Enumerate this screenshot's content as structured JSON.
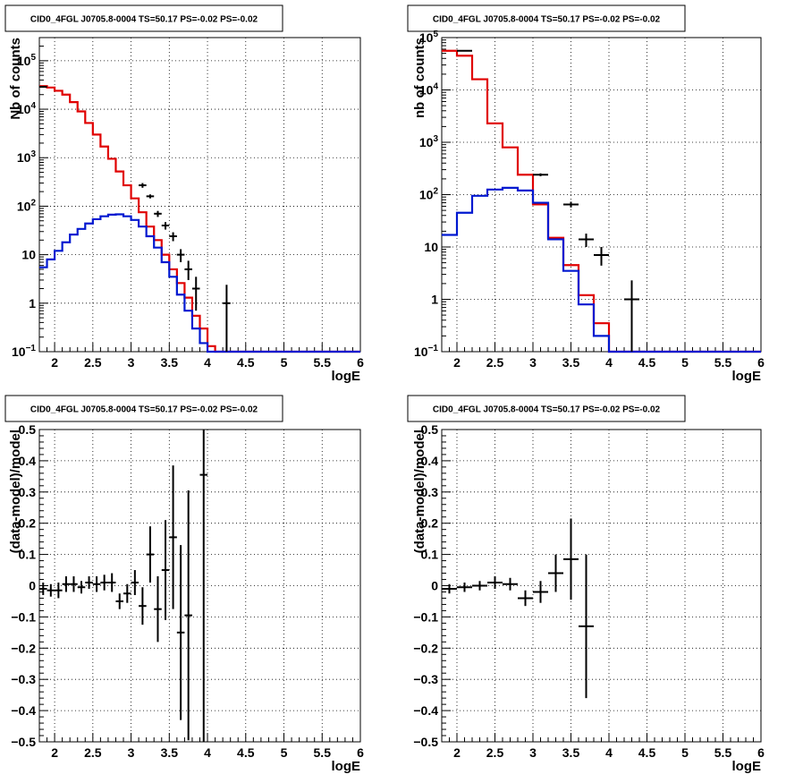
{
  "canvas": {
    "background": "#ffffff"
  },
  "colors": {
    "data": "#000000",
    "total_model": "#e00000",
    "source_model": "#0018d0",
    "grid": "#000000"
  },
  "panels": [
    {
      "title": "CID0_4FGL J0705.8-0004 TS=50.17 PS=-0.02 PS=-0.02",
      "ylabel": "Nb of counts",
      "xlabel": "logE"
    },
    {
      "title": "CID0_4FGL J0705.8-0004 TS=50.17 PS=-0.02 PS=-0.02",
      "ylabel": "nb of counts",
      "xlabel": "logE"
    },
    {
      "title": "CID0_4FGL J0705.8-0004 TS=50.17 PS=-0.02 PS=-0.02",
      "ylabel": "(data-model)/model",
      "xlabel": "logE"
    },
    {
      "title": "CID0_4FGL J0705.8-0004 TS=50.17 PS=-0.02 PS=-0.02",
      "ylabel": "(data-model)/model",
      "xlabel": "logE"
    }
  ],
  "chart_data": [
    {
      "type": "line",
      "title": "CID0_4FGL J0705.8-0004 TS=50.17 PS=-0.02 PS=-0.02",
      "xlabel": "logE",
      "ylabel": "Nb of counts",
      "xlim": [
        1.8,
        6.0
      ],
      "ylim": [
        0.1,
        300000
      ],
      "yscale": "log",
      "xticks": [
        "2",
        "2.5",
        "3",
        "3.5",
        "4",
        "4.5",
        "5",
        "5.5",
        "6"
      ],
      "yticks": [
        "10^-1",
        "1",
        "10",
        "10^2",
        "10^3",
        "10^4",
        "10^5"
      ],
      "grid": true,
      "bin_edges": [
        1.8,
        1.9,
        2.0,
        2.1,
        2.2,
        2.3,
        2.4,
        2.5,
        2.6,
        2.7,
        2.8,
        2.9,
        3.0,
        3.1,
        3.2,
        3.3,
        3.4,
        3.5,
        3.6,
        3.7,
        3.8,
        3.9,
        4.0,
        4.1,
        4.2,
        4.3,
        4.4,
        4.5,
        4.6,
        4.7,
        4.8,
        4.9,
        5.0,
        5.1,
        5.2,
        5.3,
        5.4,
        5.5,
        5.6,
        5.7,
        5.8,
        5.9,
        6.0
      ],
      "series": [
        {
          "name": "",
          "color": "#e00000",
          "values": [
            30000,
            28000,
            24000,
            20000,
            14000,
            9000,
            5200,
            3000,
            1700,
            950,
            520,
            270,
            145,
            75,
            38,
            20,
            10,
            5,
            2.6,
            1.3,
            0.55,
            0.3,
            0.13,
            0.1,
            0.1,
            0.1,
            0.1,
            0.1,
            0.1,
            0.1,
            0.1,
            0.1,
            0.1,
            0.1,
            0.1,
            0.1,
            0.1,
            0.1,
            0.1,
            0.1,
            0.1,
            0.1
          ]
        },
        {
          "name": "",
          "color": "#0018d0",
          "values": [
            5.5,
            8,
            12,
            18,
            26,
            34,
            44,
            54,
            62,
            67,
            68,
            62,
            52,
            38,
            24,
            14,
            7,
            3.5,
            1.5,
            0.7,
            0.3,
            0.15,
            0.1,
            0.1,
            0.1,
            0.1,
            0.1,
            0.1,
            0.1,
            0.1,
            0.1,
            0.1,
            0.1,
            0.1,
            0.1,
            0.1,
            0.1,
            0.1,
            0.1,
            0.1,
            0.1,
            0.1
          ]
        }
      ],
      "data_points": [
        {
          "x": 1.85,
          "y": 29000,
          "xerr": 0.05,
          "yerr": [
            800,
            800
          ]
        },
        {
          "x": 3.15,
          "y": 270,
          "xerr": 0.05,
          "yerr": [
            30,
            30
          ]
        },
        {
          "x": 3.25,
          "y": 160,
          "xerr": 0.05,
          "yerr": [
            15,
            15
          ]
        },
        {
          "x": 3.35,
          "y": 70,
          "xerr": 0.05,
          "yerr": [
            10,
            10
          ]
        },
        {
          "x": 3.45,
          "y": 40,
          "xerr": 0.05,
          "yerr": [
            7,
            7
          ]
        },
        {
          "x": 3.55,
          "y": 24,
          "xerr": 0.05,
          "yerr": [
            5,
            5
          ]
        },
        {
          "x": 3.65,
          "y": 10,
          "xerr": 0.05,
          "yerr": [
            3,
            3
          ]
        },
        {
          "x": 3.75,
          "y": 5,
          "xerr": 0.05,
          "yerr": [
            2,
            2.5
          ]
        },
        {
          "x": 3.85,
          "y": 2,
          "xerr": 0.05,
          "yerr": [
            1.3,
            1.5
          ]
        },
        {
          "x": 4.25,
          "y": 1,
          "xerr": 0.05,
          "yerr": [
            0.9,
            1.4
          ]
        }
      ]
    },
    {
      "type": "line",
      "title": "CID0_4FGL J0705.8-0004 TS=50.17 PS=-0.02 PS=-0.02",
      "xlabel": "logE",
      "ylabel": "nb of counts",
      "xlim": [
        1.8,
        6.0
      ],
      "ylim": [
        0.1,
        100000
      ],
      "yscale": "log",
      "xticks": [
        "2",
        "2.5",
        "3",
        "3.5",
        "4",
        "4.5",
        "5",
        "5.5",
        "6"
      ],
      "yticks": [
        "10^-1",
        "1",
        "10",
        "10^2",
        "10^3",
        "10^4",
        "10^5"
      ],
      "grid": true,
      "bin_edges": [
        1.8,
        2.0,
        2.2,
        2.4,
        2.6,
        2.8,
        3.0,
        3.2,
        3.4,
        3.6,
        3.8,
        4.0,
        4.2,
        4.4,
        4.6,
        4.8,
        5.0,
        5.2,
        5.4,
        5.6,
        5.8,
        6.0
      ],
      "series": [
        {
          "name": "",
          "color": "#e00000",
          "values": [
            56000,
            45000,
            16000,
            2300,
            800,
            240,
            65,
            15,
            4.5,
            1.2,
            0.35,
            0.1,
            0.1,
            0.1,
            0.1,
            0.1,
            0.1,
            0.1,
            0.1,
            0.1,
            0.1
          ]
        },
        {
          "name": "",
          "color": "#0018d0",
          "values": [
            17,
            45,
            95,
            125,
            135,
            120,
            70,
            14,
            3.5,
            0.8,
            0.2,
            0.1,
            0.1,
            0.1,
            0.1,
            0.1,
            0.1,
            0.1,
            0.1,
            0.1,
            0.1
          ]
        }
      ],
      "data_points": [
        {
          "x": 2.1,
          "y": 56000,
          "xerr": 0.1,
          "yerr": [
            1000,
            1000
          ]
        },
        {
          "x": 3.1,
          "y": 240,
          "xerr": 0.1,
          "yerr": [
            15,
            15
          ]
        },
        {
          "x": 3.5,
          "y": 65,
          "xerr": 0.1,
          "yerr": [
            8,
            8
          ]
        },
        {
          "x": 3.7,
          "y": 14,
          "xerr": 0.1,
          "yerr": [
            4,
            4
          ]
        },
        {
          "x": 3.9,
          "y": 7,
          "xerr": 0.1,
          "yerr": [
            2.6,
            3
          ]
        },
        {
          "x": 4.3,
          "y": 1,
          "xerr": 0.1,
          "yerr": [
            0.9,
            1.3
          ]
        }
      ]
    },
    {
      "type": "scatter",
      "title": "CID0_4FGL J0705.8-0004 TS=50.17 PS=-0.02 PS=-0.02",
      "xlabel": "logE",
      "ylabel": "(data-model)/model",
      "xlim": [
        1.8,
        6.0
      ],
      "ylim": [
        -0.5,
        0.5
      ],
      "xticks": [
        "2",
        "2.5",
        "3",
        "3.5",
        "4",
        "4.5",
        "5",
        "5.5",
        "6"
      ],
      "yticks": [
        "-0.5",
        "-0.4",
        "-0.3",
        "-0.2",
        "-0.1",
        "0",
        "0.1",
        "0.2",
        "0.3",
        "0.4",
        "0.5"
      ],
      "grid": true,
      "points": [
        {
          "x": 1.85,
          "y": -0.01,
          "xerr": 0.05,
          "yerr": 0.02
        },
        {
          "x": 1.95,
          "y": -0.015,
          "xerr": 0.05,
          "yerr": 0.02
        },
        {
          "x": 2.05,
          "y": -0.015,
          "xerr": 0.05,
          "yerr": 0.025
        },
        {
          "x": 2.15,
          "y": 0.005,
          "xerr": 0.05,
          "yerr": 0.025
        },
        {
          "x": 2.25,
          "y": 0.005,
          "xerr": 0.05,
          "yerr": 0.025
        },
        {
          "x": 2.35,
          "y": -0.005,
          "xerr": 0.05,
          "yerr": 0.02
        },
        {
          "x": 2.45,
          "y": 0.01,
          "xerr": 0.05,
          "yerr": 0.02
        },
        {
          "x": 2.55,
          "y": 0.005,
          "xerr": 0.05,
          "yerr": 0.025
        },
        {
          "x": 2.65,
          "y": 0.01,
          "xerr": 0.05,
          "yerr": 0.025
        },
        {
          "x": 2.75,
          "y": 0.01,
          "xerr": 0.05,
          "yerr": 0.03
        },
        {
          "x": 2.85,
          "y": -0.05,
          "xerr": 0.05,
          "yerr": 0.025
        },
        {
          "x": 2.95,
          "y": -0.025,
          "xerr": 0.05,
          "yerr": 0.03
        },
        {
          "x": 3.05,
          "y": 0.01,
          "xerr": 0.05,
          "yerr": 0.04
        },
        {
          "x": 3.15,
          "y": -0.065,
          "xerr": 0.05,
          "yerr": 0.06
        },
        {
          "x": 3.25,
          "y": 0.1,
          "xerr": 0.05,
          "yerr": 0.09
        },
        {
          "x": 3.35,
          "y": -0.075,
          "xerr": 0.05,
          "yerr": 0.105
        },
        {
          "x": 3.45,
          "y": 0.05,
          "xerr": 0.05,
          "yerr": 0.16
        },
        {
          "x": 3.55,
          "y": 0.155,
          "xerr": 0.05,
          "yerr": 0.23
        },
        {
          "x": 3.65,
          "y": -0.15,
          "xerr": 0.05,
          "yerr": 0.28
        },
        {
          "x": 3.75,
          "y": -0.095,
          "xerr": 0.05,
          "yerr": 0.4
        },
        {
          "x": 3.95,
          "y": 0.355,
          "xerr": 0.05,
          "yerr": 0.87
        }
      ]
    },
    {
      "type": "scatter",
      "title": "CID0_4FGL J0705.8-0004 TS=50.17 PS=-0.02 PS=-0.02",
      "xlabel": "logE",
      "ylabel": "(data-model)/model",
      "xlim": [
        1.8,
        6.0
      ],
      "ylim": [
        -0.5,
        0.5
      ],
      "xticks": [
        "2",
        "2.5",
        "3",
        "3.5",
        "4",
        "4.5",
        "5",
        "5.5",
        "6"
      ],
      "yticks": [
        "-0.5",
        "-0.4",
        "-0.3",
        "-0.2",
        "-0.1",
        "0",
        "0.1",
        "0.2",
        "0.3",
        "0.4",
        "0.5"
      ],
      "grid": true,
      "points": [
        {
          "x": 1.9,
          "y": -0.01,
          "xerr": 0.1,
          "yerr": 0.015
        },
        {
          "x": 2.1,
          "y": -0.005,
          "xerr": 0.1,
          "yerr": 0.015
        },
        {
          "x": 2.3,
          "y": 0.0,
          "xerr": 0.1,
          "yerr": 0.015
        },
        {
          "x": 2.5,
          "y": 0.01,
          "xerr": 0.1,
          "yerr": 0.02
        },
        {
          "x": 2.7,
          "y": 0.005,
          "xerr": 0.1,
          "yerr": 0.02
        },
        {
          "x": 2.9,
          "y": -0.04,
          "xerr": 0.1,
          "yerr": 0.025
        },
        {
          "x": 3.1,
          "y": -0.02,
          "xerr": 0.1,
          "yerr": 0.035
        },
        {
          "x": 3.3,
          "y": 0.04,
          "xerr": 0.1,
          "yerr": 0.06
        },
        {
          "x": 3.5,
          "y": 0.085,
          "xerr": 0.1,
          "yerr": 0.13
        },
        {
          "x": 3.7,
          "y": -0.13,
          "xerr": 0.1,
          "yerr": 0.23
        }
      ]
    }
  ]
}
